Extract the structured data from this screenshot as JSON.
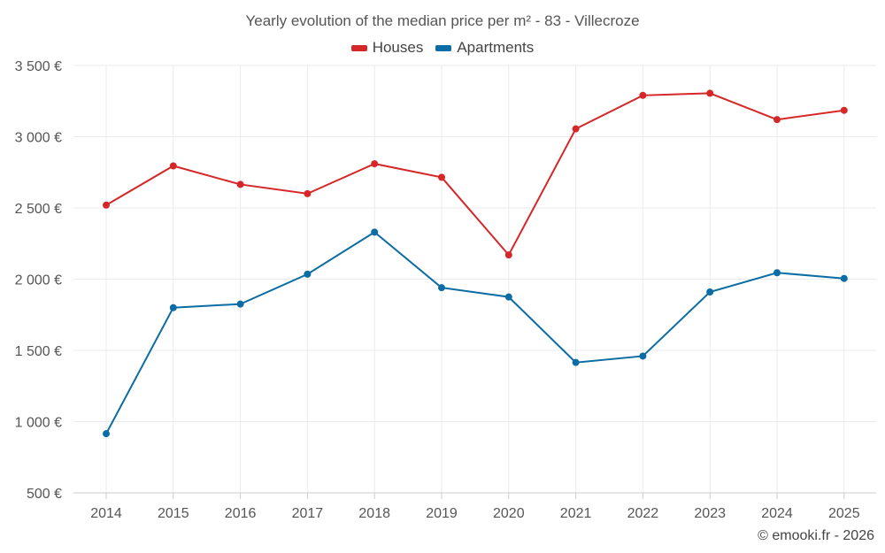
{
  "chart_data": {
    "type": "line",
    "title": "Yearly evolution of the median price per m² - 83 - Villecroze",
    "categories": [
      "2014",
      "2015",
      "2016",
      "2017",
      "2018",
      "2019",
      "2020",
      "2021",
      "2022",
      "2023",
      "2024",
      "2025"
    ],
    "series": [
      {
        "name": "Houses",
        "color": "#d62728",
        "values": [
          2520,
          2795,
          2665,
          2600,
          2810,
          2715,
          2170,
          3055,
          3290,
          3305,
          3120,
          3185
        ]
      },
      {
        "name": "Apartments",
        "color": "#0b6da3",
        "values": [
          915,
          1800,
          1825,
          2035,
          2330,
          1940,
          1875,
          1415,
          1460,
          1910,
          2045,
          2005
        ]
      }
    ],
    "ylim": [
      500,
      3500
    ],
    "yticks": [
      500,
      1000,
      1500,
      2000,
      2500,
      3000,
      3500
    ],
    "ytick_labels": [
      "500 €",
      "1 000 €",
      "1 500 €",
      "2 000 €",
      "2 500 €",
      "3 000 €",
      "3 500 €"
    ],
    "xlabel": "",
    "ylabel": "",
    "grid": true,
    "legend_position": "top-center"
  },
  "credit": "© emooki.fr - 2026"
}
